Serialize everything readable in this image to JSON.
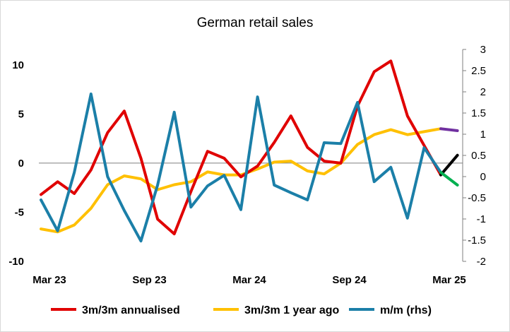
{
  "chart_data": {
    "type": "line",
    "title": "German retail sales",
    "x_tick_labels": [
      "Mar 23",
      "Sep 23",
      "Mar 24",
      "Sep 24",
      "Mar 25"
    ],
    "y_left": {
      "ylim": [
        -10,
        12
      ],
      "ticks": [
        "10",
        "5",
        "0",
        "-5",
        "-10"
      ],
      "tick_values": [
        10,
        5,
        0,
        -5,
        -10
      ]
    },
    "y_right": {
      "ylim": [
        -2,
        3
      ],
      "ticks": [
        "3",
        "2.5",
        "2",
        "1.5",
        "1",
        "0.5",
        "0",
        "-0.5",
        "-1",
        "-1.5",
        "-2"
      ],
      "tick_values": [
        3,
        2.5,
        2,
        1.5,
        1,
        0.5,
        0,
        -0.5,
        -1,
        -1.5,
        -2
      ]
    },
    "grid": false,
    "legend_position": "bottom",
    "series": [
      {
        "name": "3m/3m annualised",
        "axis": "left",
        "color": "#e00000",
        "values": [
          -3.2,
          -1.9,
          -3.1,
          -0.7,
          3.1,
          5.3,
          0.5,
          -5.7,
          -7.2,
          -2.9,
          1.2,
          0.5,
          -1.4,
          -0.3,
          2.1,
          4.8,
          1.6,
          0.2,
          0.0,
          5.8,
          9.3,
          10.4,
          4.8,
          1.8,
          -1.2
        ]
      },
      {
        "name": "3m/3m 1 year ago",
        "axis": "left",
        "color": "#ffc000",
        "values": [
          -6.7,
          -7.0,
          -6.3,
          -4.6,
          -2.2,
          -1.3,
          -1.6,
          -2.7,
          -2.2,
          -1.9,
          -0.9,
          -1.2,
          -1.2,
          -0.6,
          0.1,
          0.2,
          -0.8,
          -1.1,
          0.0,
          1.9,
          2.9,
          3.4,
          2.9,
          3.2,
          3.5
        ]
      },
      {
        "name": "m/m (rhs)",
        "axis": "right",
        "color": "#1b7fa8",
        "values": [
          -0.55,
          -1.28,
          0.1,
          1.95,
          0.0,
          -0.8,
          -1.52,
          -0.2,
          1.52,
          -0.72,
          -0.22,
          0.03,
          -0.78,
          1.88,
          -0.2,
          -0.38,
          -0.55,
          0.8,
          0.78,
          1.75,
          -0.12,
          0.22,
          -0.98,
          0.68,
          0.1
        ]
      }
    ],
    "projections": [
      {
        "series": "3m/3m annualised",
        "color": "#000000",
        "values": [
          -1.2,
          0.8
        ]
      },
      {
        "series": "3m/3m 1 year ago",
        "color": "#7030a0",
        "values": [
          3.5,
          3.3
        ]
      },
      {
        "series": "m/m (rhs)",
        "color": "#00b050",
        "values": [
          0.1,
          -0.2
        ]
      }
    ]
  }
}
